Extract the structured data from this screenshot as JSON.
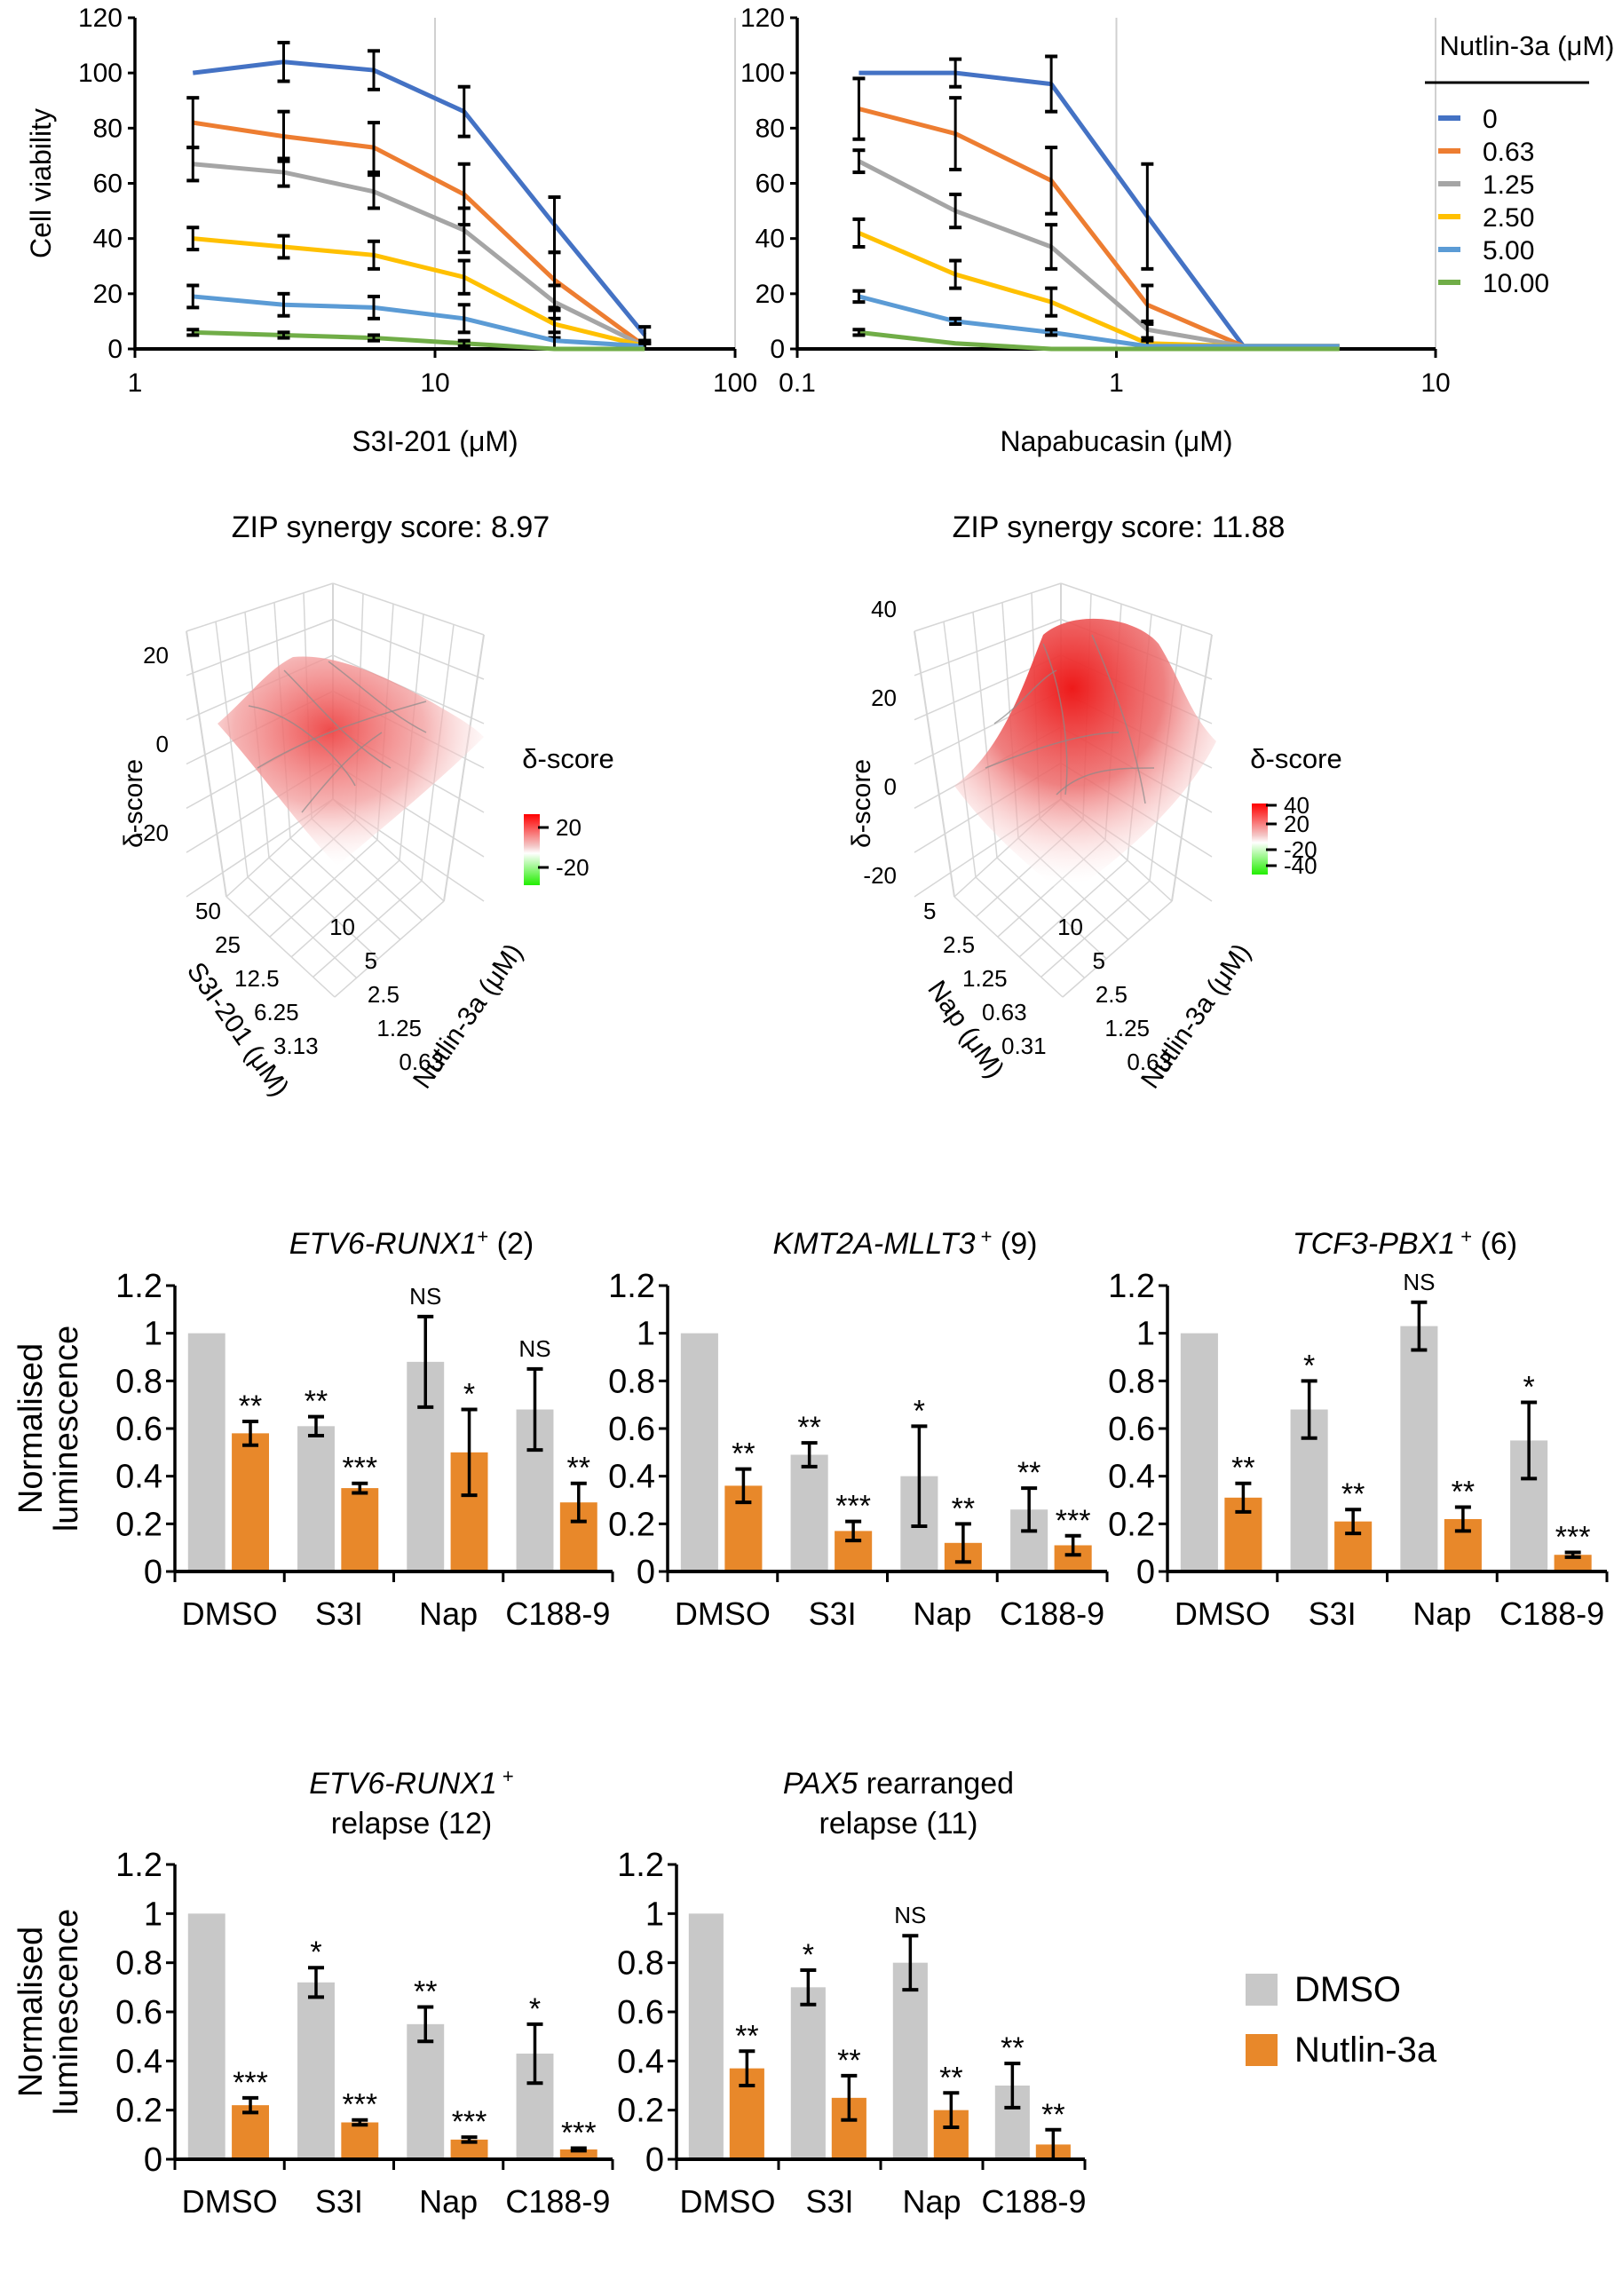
{
  "figure": {
    "panel_a": {
      "legend_title": "Nutlin-3a (μM)",
      "legend_items": [
        {
          "label": "0",
          "color": "#4472C4"
        },
        {
          "label": "0.63",
          "color": "#ED7D31"
        },
        {
          "label": "1.25",
          "color": "#A5A5A5"
        },
        {
          "label": "2.50",
          "color": "#FFC000"
        },
        {
          "label": "5.00",
          "color": "#5B9BD5"
        },
        {
          "label": "10.00",
          "color": "#70AD47"
        }
      ]
    },
    "panel_b": {
      "colorbar_title": "δ-score"
    },
    "panel_c": {
      "legend": [
        {
          "label": "DMSO",
          "color": "#C8C8C8"
        },
        {
          "label": "Nutlin-3a",
          "color": "#E8882A"
        }
      ]
    }
  },
  "chart_data": [
    {
      "id": "viability-s3i",
      "type": "line",
      "title": "",
      "xlabel": "S3I-201 (μM)",
      "ylabel": "Cell viability",
      "xscale": "log",
      "xlim": [
        1,
        100
      ],
      "ylim": [
        0,
        120
      ],
      "xticks": [
        "1",
        "10",
        "100"
      ],
      "yticks": [
        "0",
        "20",
        "40",
        "60",
        "80",
        "100",
        "120"
      ],
      "x": [
        1.56,
        3.13,
        6.25,
        12.5,
        25,
        50
      ],
      "series": [
        {
          "name": "0",
          "color": "#4472C4",
          "values": [
            100,
            104,
            101,
            86,
            45,
            5
          ],
          "err": [
            0,
            7,
            7,
            9,
            10,
            3
          ]
        },
        {
          "name": "0.63",
          "color": "#ED7D31",
          "values": [
            82,
            77,
            73,
            56,
            25,
            1
          ],
          "err": [
            9,
            9,
            9,
            11,
            10,
            2
          ]
        },
        {
          "name": "1.25",
          "color": "#A5A5A5",
          "values": [
            67,
            64,
            57,
            43,
            17,
            1
          ],
          "err": [
            6,
            5,
            6,
            8,
            6,
            2
          ]
        },
        {
          "name": "2.50",
          "color": "#FFC000",
          "values": [
            40,
            37,
            34,
            26,
            9,
            1
          ],
          "err": [
            4,
            4,
            5,
            6,
            5,
            1
          ]
        },
        {
          "name": "5.00",
          "color": "#5B9BD5",
          "values": [
            19,
            16,
            15,
            11,
            3,
            1
          ],
          "err": [
            4,
            4,
            4,
            5,
            3,
            1
          ]
        },
        {
          "name": "10.00",
          "color": "#70AD47",
          "values": [
            6,
            5,
            4,
            2,
            0,
            0
          ],
          "err": [
            1,
            1,
            1,
            1,
            0,
            0
          ]
        }
      ]
    },
    {
      "id": "viability-nap",
      "type": "line",
      "title": "",
      "xlabel": "Napabucasin (μM)",
      "ylabel": "",
      "xscale": "log",
      "xlim": [
        0.1,
        10
      ],
      "ylim": [
        0,
        120
      ],
      "xticks": [
        "0.1",
        "1",
        "10"
      ],
      "yticks": [
        "0",
        "20",
        "40",
        "60",
        "80",
        "100",
        "120"
      ],
      "x": [
        0.156,
        0.313,
        0.625,
        1.25,
        2.5,
        5
      ],
      "series": [
        {
          "name": "0",
          "color": "#4472C4",
          "values": [
            100,
            100,
            96,
            48,
            1,
            1
          ],
          "err": [
            0,
            5,
            10,
            19,
            0,
            0
          ]
        },
        {
          "name": "0.63",
          "color": "#ED7D31",
          "values": [
            87,
            78,
            61,
            16,
            1,
            1
          ],
          "err": [
            11,
            13,
            12,
            7,
            0,
            0
          ]
        },
        {
          "name": "1.25",
          "color": "#A5A5A5",
          "values": [
            68,
            50,
            37,
            7,
            1,
            1
          ],
          "err": [
            4,
            6,
            8,
            3,
            0,
            0
          ]
        },
        {
          "name": "2.50",
          "color": "#FFC000",
          "values": [
            42,
            27,
            17,
            2,
            1,
            1
          ],
          "err": [
            5,
            5,
            5,
            1,
            0,
            0
          ]
        },
        {
          "name": "5.00",
          "color": "#5B9BD5",
          "values": [
            19,
            10,
            6,
            1,
            1,
            1
          ],
          "err": [
            2,
            1,
            1,
            0,
            0,
            0
          ]
        },
        {
          "name": "10.00",
          "color": "#70AD47",
          "values": [
            6,
            2,
            0,
            0,
            0,
            0
          ],
          "err": [
            1,
            0,
            0,
            0,
            0,
            0
          ]
        }
      ]
    },
    {
      "id": "zip-s3i",
      "type": "heatmap",
      "title": "ZIP synergy score: 8.97",
      "zlabel": "δ-score",
      "zticks": [
        "-20",
        "0",
        "20"
      ],
      "xlabel": "S3I-201 (μM)",
      "xticks": [
        "3.13",
        "6.25",
        "12.5",
        "25",
        "50"
      ],
      "ylabel": "Nutlin-3a (μM)",
      "yticks": [
        "0.63",
        "1.25",
        "2.5",
        "5",
        "10"
      ],
      "colorbar_ticks": [
        "20",
        "-20"
      ],
      "colorbar_range": [
        -30,
        30
      ]
    },
    {
      "id": "zip-nap",
      "type": "heatmap",
      "title": "ZIP synergy score: 11.88",
      "zlabel": "δ-score",
      "zticks": [
        "-20",
        "0",
        "20",
        "40"
      ],
      "xlabel": "Nap (μM)",
      "xticks": [
        "0.31",
        "0.63",
        "1.25",
        "2.5",
        "5"
      ],
      "ylabel": "Nutlin-3a (μM)",
      "yticks": [
        "0.63",
        "1.25",
        "2.5",
        "5",
        "10"
      ],
      "colorbar_ticks": [
        "40",
        "20",
        "-20",
        "-40"
      ],
      "colorbar_range": [
        -45,
        45
      ]
    },
    {
      "id": "bar-etv6-runx1",
      "type": "bar",
      "title_italic": "ETV6-RUNX1",
      "title_sup": "+",
      "title_rest": " (2)",
      "title_line2": "",
      "ylabel": [
        "Normalised",
        "luminescence"
      ],
      "ylim": [
        0,
        1.2
      ],
      "yticks": [
        "0",
        "0.2",
        "0.4",
        "0.6",
        "0.8",
        "1",
        "1.2"
      ],
      "categories": [
        "DMSO",
        "S3I",
        "Nap",
        "C188-9"
      ],
      "series": [
        {
          "name": "DMSO",
          "values": [
            1.0,
            0.61,
            0.88,
            0.68
          ],
          "err": [
            0,
            0.04,
            0.19,
            0.17
          ],
          "sig": [
            "",
            "**",
            "NS",
            "NS"
          ]
        },
        {
          "name": "Nutlin-3a",
          "values": [
            0.58,
            0.35,
            0.5,
            0.29
          ],
          "err": [
            0.05,
            0.02,
            0.18,
            0.08
          ],
          "sig": [
            "**",
            "***",
            "*",
            "**"
          ]
        }
      ]
    },
    {
      "id": "bar-kmt2a-mllt3",
      "type": "bar",
      "title_italic": "KMT2A-MLLT3",
      "title_sup": " +",
      "title_rest": " (9)",
      "title_line2": "",
      "ylabel": [],
      "ylim": [
        0,
        1.2
      ],
      "yticks": [
        "0",
        "0.2",
        "0.4",
        "0.6",
        "0.8",
        "1",
        "1.2"
      ],
      "categories": [
        "DMSO",
        "S3I",
        "Nap",
        "C188-9"
      ],
      "series": [
        {
          "name": "DMSO",
          "values": [
            1.0,
            0.49,
            0.4,
            0.26
          ],
          "err": [
            0,
            0.05,
            0.21,
            0.09
          ],
          "sig": [
            "",
            "**",
            "*",
            "**"
          ]
        },
        {
          "name": "Nutlin-3a",
          "values": [
            0.36,
            0.17,
            0.12,
            0.11
          ],
          "err": [
            0.07,
            0.04,
            0.08,
            0.04
          ],
          "sig": [
            "**",
            "***",
            "**",
            "***"
          ]
        }
      ]
    },
    {
      "id": "bar-tcf3-pbx1",
      "type": "bar",
      "title_italic": "TCF3-PBX1",
      "title_sup": " +",
      "title_rest": " (6)",
      "title_line2": "",
      "ylabel": [],
      "ylim": [
        0,
        1.2
      ],
      "yticks": [
        "0",
        "0.2",
        "0.4",
        "0.6",
        "0.8",
        "1",
        "1.2"
      ],
      "categories": [
        "DMSO",
        "S3I",
        "Nap",
        "C188-9"
      ],
      "series": [
        {
          "name": "DMSO",
          "values": [
            1.0,
            0.68,
            1.03,
            0.55
          ],
          "err": [
            0,
            0.12,
            0.1,
            0.16
          ],
          "sig": [
            "",
            "*",
            "NS",
            "*"
          ]
        },
        {
          "name": "Nutlin-3a",
          "values": [
            0.31,
            0.21,
            0.22,
            0.07
          ],
          "err": [
            0.06,
            0.05,
            0.05,
            0.01
          ],
          "sig": [
            "**",
            "**",
            "**",
            "***"
          ]
        }
      ]
    },
    {
      "id": "bar-etv6-runx1-relapse",
      "type": "bar",
      "title_italic": "ETV6-RUNX1",
      "title_sup": " +",
      "title_rest": "",
      "title_line2": "relapse (12)",
      "ylabel": [
        "Normalised",
        "luminescence"
      ],
      "ylim": [
        0,
        1.2
      ],
      "yticks": [
        "0",
        "0.2",
        "0.4",
        "0.6",
        "0.8",
        "1",
        "1.2"
      ],
      "categories": [
        "DMSO",
        "S3I",
        "Nap",
        "C188-9"
      ],
      "series": [
        {
          "name": "DMSO",
          "values": [
            1.0,
            0.72,
            0.55,
            0.43
          ],
          "err": [
            0,
            0.06,
            0.07,
            0.12
          ],
          "sig": [
            "",
            "*",
            "**",
            "*"
          ]
        },
        {
          "name": "Nutlin-3a",
          "values": [
            0.22,
            0.15,
            0.08,
            0.04
          ],
          "err": [
            0.03,
            0.01,
            0.01,
            0.005
          ],
          "sig": [
            "***",
            "***",
            "***",
            "***"
          ]
        }
      ]
    },
    {
      "id": "bar-pax5-relapse",
      "type": "bar",
      "title_italic": "PAX5",
      "title_sup": "",
      "title_rest": " rearranged",
      "title_line2": "relapse (11)",
      "ylabel": [],
      "ylim": [
        0,
        1.2
      ],
      "yticks": [
        "0",
        "0.2",
        "0.4",
        "0.6",
        "0.8",
        "1",
        "1.2"
      ],
      "categories": [
        "DMSO",
        "S3I",
        "Nap",
        "C188-9"
      ],
      "series": [
        {
          "name": "DMSO",
          "values": [
            1.0,
            0.7,
            0.8,
            0.3
          ],
          "err": [
            0,
            0.07,
            0.11,
            0.09
          ],
          "sig": [
            "",
            "*",
            "NS",
            "**"
          ]
        },
        {
          "name": "Nutlin-3a",
          "values": [
            0.37,
            0.25,
            0.2,
            0.06
          ],
          "err": [
            0.07,
            0.09,
            0.07,
            0.06
          ],
          "sig": [
            "**",
            "**",
            "**",
            "**"
          ]
        }
      ]
    }
  ]
}
